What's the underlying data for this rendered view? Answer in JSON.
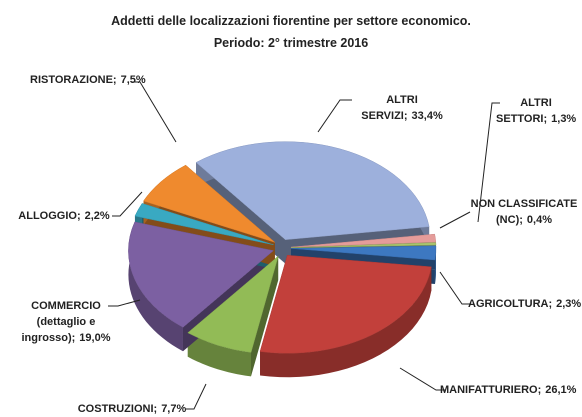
{
  "chart_data": {
    "type": "pie",
    "title": "Addetti delle localizzazioni fiorentine per settore economico.",
    "subtitle": "Periodo: 2° trimestre 2016",
    "categories": [
      "ALTRI SERVIZI;",
      "ALTRI SETTORI;",
      "NON CLASSIFICATE (NC);",
      "AGRICOLTURA;",
      "MANIFATTURIERO;",
      "COSTRUZIONI;",
      "COMMERCIO (dettaglio e ingrosso);",
      "ALLOGGIO;",
      "RISTORAZIONE;"
    ],
    "values": [
      33.4,
      1.3,
      0.4,
      2.3,
      26.1,
      7.7,
      19.0,
      2.2,
      7.5
    ],
    "value_labels": [
      "33,4%",
      "1,3%",
      "0,4%",
      "2,3%",
      "26,1%",
      "7,7%",
      "19,0%",
      "2,2%",
      "7,5%"
    ],
    "colors": [
      "#9db0dc",
      "#e59c9a",
      "#a9c46c",
      "#3d78c1",
      "#c2403b",
      "#92bb56",
      "#7c60a2",
      "#39a9c2",
      "#ef8a2e"
    ]
  }
}
